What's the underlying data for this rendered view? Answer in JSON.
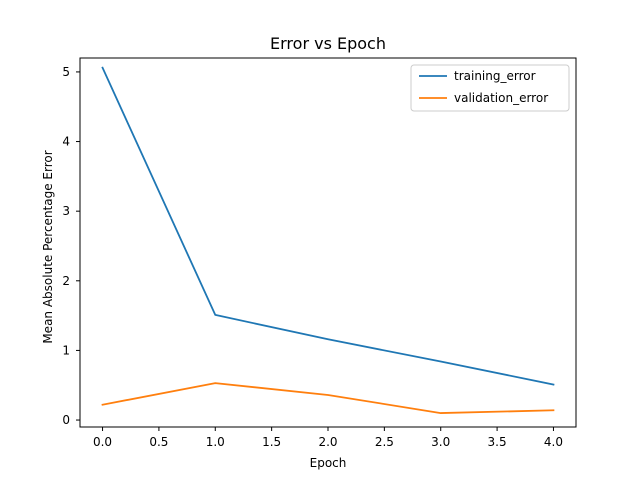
{
  "chart_data": {
    "type": "line",
    "title": "Error vs Epoch",
    "xlabel": "Epoch",
    "ylabel": "Mean Absolute Percentage Error",
    "xlim": [
      -0.2,
      4.2
    ],
    "ylim": [
      -0.1,
      5.2
    ],
    "xticks": [
      0,
      0.5,
      1,
      1.5,
      2,
      2.5,
      3,
      3.5,
      4
    ],
    "xtick_labels": [
      "0.0",
      "0.5",
      "1.0",
      "1.5",
      "2.0",
      "2.5",
      "3.0",
      "3.5",
      "4.0"
    ],
    "yticks": [
      0,
      1,
      2,
      3,
      4,
      5
    ],
    "ytick_labels": [
      "0",
      "1",
      "2",
      "3",
      "4",
      "5"
    ],
    "grid": false,
    "legend_position": "top-right",
    "x": [
      0,
      1,
      2,
      3,
      4
    ],
    "series": [
      {
        "name": "training_error",
        "color": "#1f77b4",
        "values": [
          5.06,
          1.51,
          1.16,
          0.84,
          0.51
        ]
      },
      {
        "name": "validation_error",
        "color": "#ff7f0e",
        "values": [
          0.22,
          0.53,
          0.36,
          0.1,
          0.14
        ]
      }
    ]
  }
}
